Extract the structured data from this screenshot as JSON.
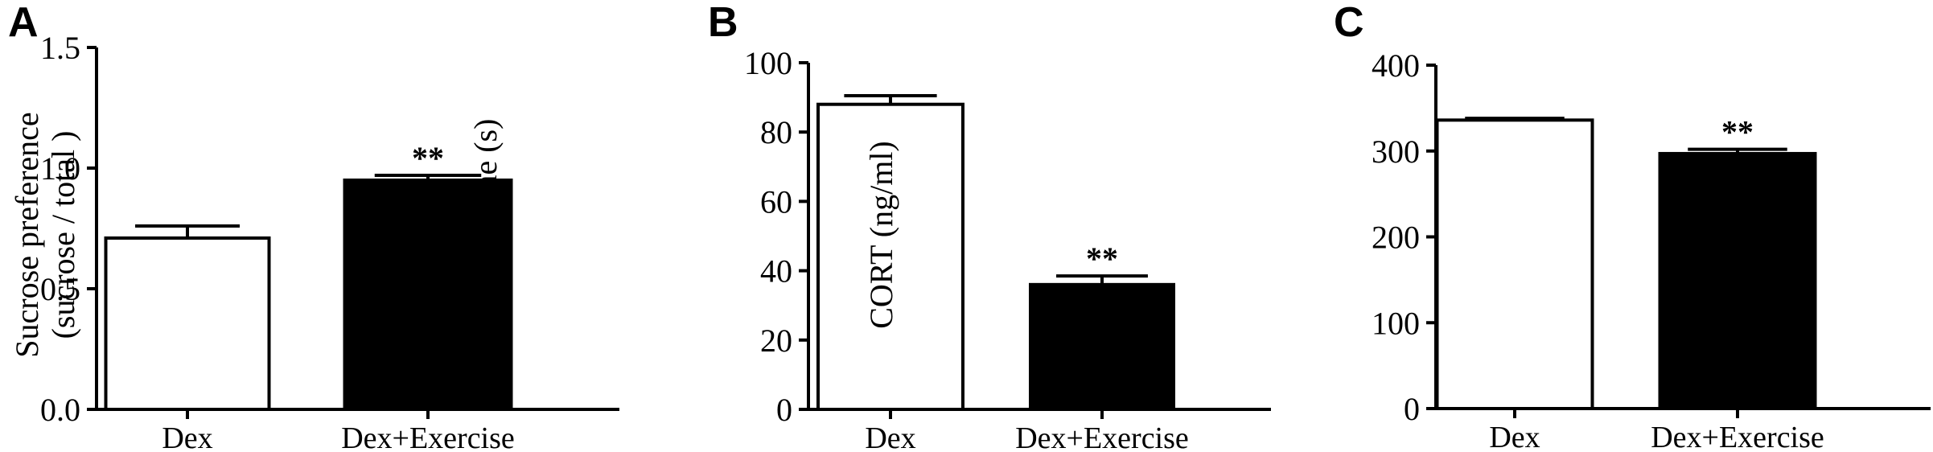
{
  "chart_data": [
    {
      "type": "bar",
      "panel": "A",
      "ylabel_lines": [
        "Sucrose preference",
        "(sucrose / total )"
      ],
      "ylim": [
        0,
        1.5
      ],
      "yticks": [
        0.0,
        0.5,
        1.0,
        1.5
      ],
      "ytick_labels": [
        "0.0",
        "0.5",
        "1.0",
        "1.5"
      ],
      "categories": [
        "Dex",
        "Dex+Exercise"
      ],
      "values": [
        0.71,
        0.95
      ],
      "errors": [
        0.05,
        0.02
      ],
      "fills": [
        "#ffffff",
        "#000000"
      ],
      "annotations": [
        "",
        "**"
      ],
      "grid": false
    },
    {
      "type": "bar",
      "panel": "B",
      "ylabel_lines": [
        "Immobile time (s)"
      ],
      "ylim": [
        0,
        100
      ],
      "yticks": [
        0,
        20,
        40,
        60,
        80,
        100
      ],
      "ytick_labels": [
        "0",
        "20",
        "40",
        "60",
        "80",
        "100"
      ],
      "categories": [
        "Dex",
        "Dex+Exercise"
      ],
      "values": [
        88,
        36
      ],
      "errors": [
        2.5,
        2.5
      ],
      "fills": [
        "#ffffff",
        "#000000"
      ],
      "annotations": [
        "",
        "**"
      ],
      "grid": false
    },
    {
      "type": "bar",
      "panel": "C",
      "ylabel_lines": [
        "CORT (ng/ml)"
      ],
      "ylim": [
        0,
        400
      ],
      "yticks": [
        0,
        100,
        200,
        300,
        400
      ],
      "ytick_labels": [
        "0",
        "100",
        "200",
        "300",
        "400"
      ],
      "categories": [
        "Dex",
        "Dex+Exercise"
      ],
      "values": [
        336,
        297
      ],
      "errors": [
        2,
        5
      ],
      "fills": [
        "#ffffff",
        "#000000"
      ],
      "annotations": [
        "",
        "**"
      ],
      "grid": false
    }
  ]
}
